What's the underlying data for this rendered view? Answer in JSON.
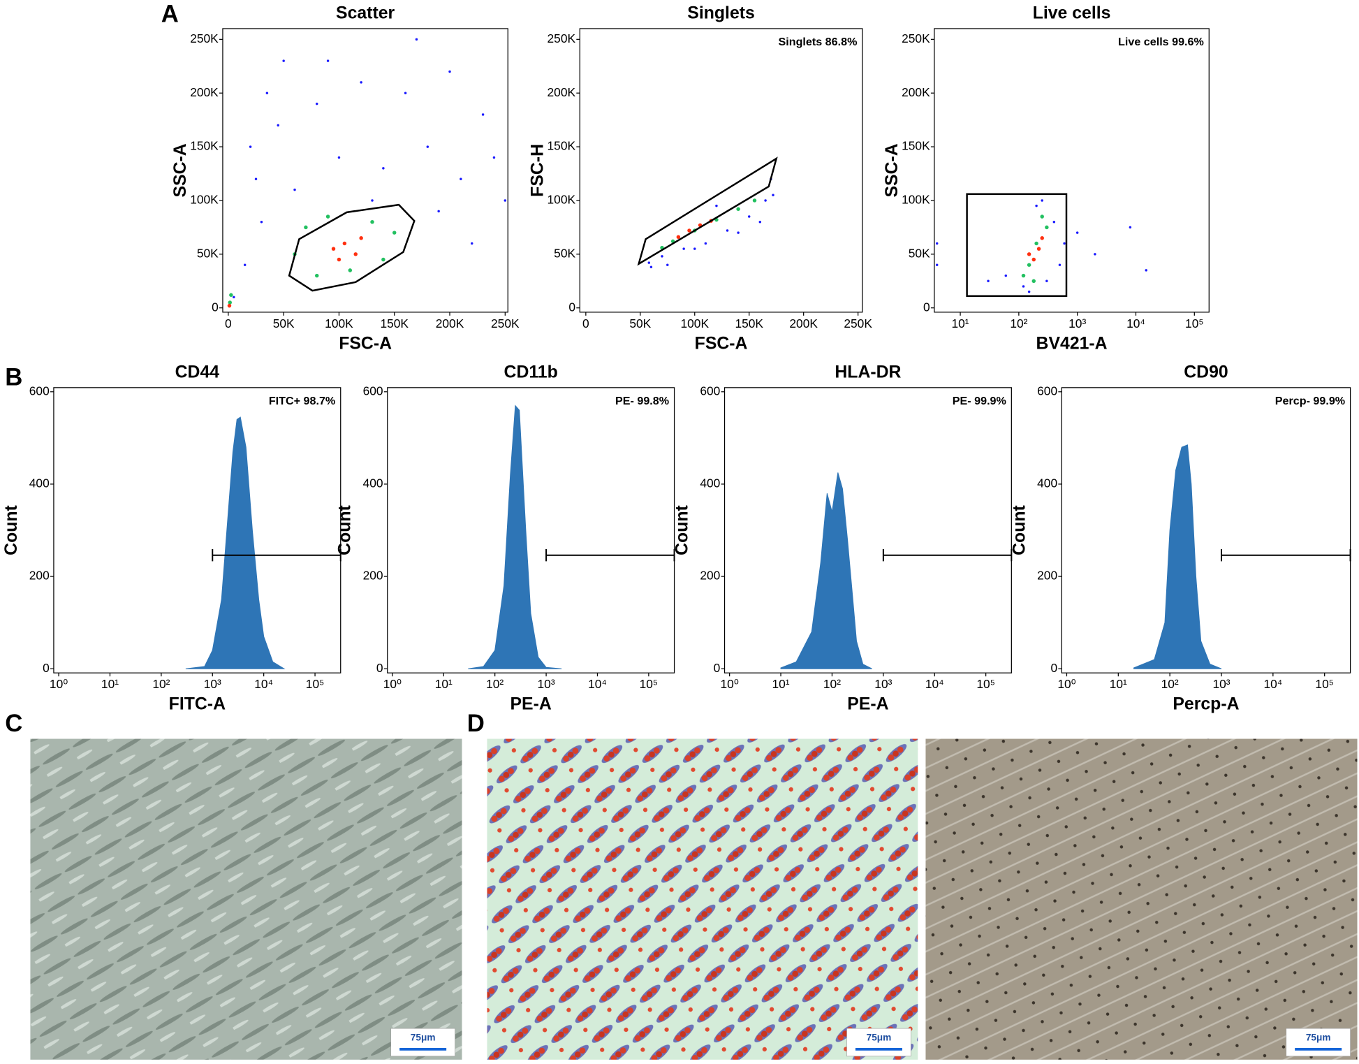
{
  "panel_labels": [
    "A",
    "B",
    "C",
    "D"
  ],
  "chart_data": [
    {
      "type": "scatter",
      "title": "Scatter",
      "xlabel": "FSC-A",
      "ylabel": "SSC-A",
      "xlim": [
        -5000,
        252500
      ],
      "ylim": [
        -4000,
        260000
      ],
      "xticks": [
        0,
        {
          "value": 50000,
          "label": "50K"
        },
        {
          "value": 100000,
          "label": "100K"
        },
        {
          "value": 150000,
          "label": "150K"
        },
        {
          "value": 200000,
          "label": "200K"
        },
        {
          "value": 250000,
          "label": "250K"
        }
      ],
      "yticks": [
        0,
        {
          "value": 50000,
          "label": "50K"
        },
        {
          "value": 100000,
          "label": "100K"
        },
        {
          "value": 150000,
          "label": "150K"
        },
        {
          "value": 200000,
          "label": "200K"
        },
        {
          "value": 250000,
          "label": "250K"
        }
      ],
      "series": [
        {
          "color": "#1a1aff",
          "x": [
            20000,
            35000,
            50000,
            80000,
            120000,
            160000,
            200000,
            230000,
            240000,
            210000,
            180000,
            140000,
            100000,
            60000,
            30000,
            15000,
            5000,
            190000,
            220000,
            250000,
            45000,
            90000,
            170000,
            130000,
            25000
          ],
          "values": [
            150000,
            200000,
            230000,
            190000,
            210000,
            200000,
            220000,
            180000,
            140000,
            120000,
            150000,
            130000,
            140000,
            110000,
            80000,
            40000,
            10000,
            90000,
            60000,
            100000,
            170000,
            230000,
            250000,
            100000,
            120000
          ]
        },
        {
          "color": "#22c060",
          "x": [
            70000,
            90000,
            130000,
            150000,
            60000,
            140000,
            80000,
            110000,
            1500,
            2500
          ],
          "values": [
            75000,
            85000,
            80000,
            70000,
            50000,
            45000,
            30000,
            35000,
            5000,
            12000
          ]
        },
        {
          "color": "#ff3010",
          "x": [
            95000,
            105000,
            115000,
            100000,
            120000,
            1000
          ],
          "values": [
            55000,
            60000,
            50000,
            45000,
            65000,
            2000
          ]
        }
      ],
      "gate": {
        "x": [
          55000,
          64000,
          107000,
          154000,
          168000,
          158000,
          115000,
          76000
        ],
        "y": [
          30000,
          64000,
          89000,
          96000,
          81000,
          52000,
          24000,
          16000
        ]
      }
    },
    {
      "type": "scatter",
      "title": "Singlets",
      "xlabel": "FSC-A",
      "ylabel": "FSC-H",
      "annotation": "Singlets 86.8%",
      "xlim": [
        -5500,
        254000
      ],
      "ylim": [
        -4000,
        260000
      ],
      "xticks": [
        0,
        {
          "value": 50000,
          "label": "50K"
        },
        {
          "value": 100000,
          "label": "100K"
        },
        {
          "value": 150000,
          "label": "150K"
        },
        {
          "value": 200000,
          "label": "200K"
        },
        {
          "value": 250000,
          "label": "250K"
        }
      ],
      "yticks": [
        0,
        {
          "value": 50000,
          "label": "50K"
        },
        {
          "value": 100000,
          "label": "100K"
        },
        {
          "value": 150000,
          "label": "150K"
        },
        {
          "value": 200000,
          "label": "200K"
        },
        {
          "value": 250000,
          "label": "250K"
        }
      ],
      "series": [
        {
          "color": "#1a1aff",
          "x": [
            58000,
            70000,
            90000,
            110000,
            130000,
            150000,
            165000,
            170000,
            160000,
            140000,
            75000,
            120000,
            100000,
            60000,
            172000
          ],
          "values": [
            42000,
            48000,
            55000,
            60000,
            72000,
            85000,
            100000,
            120000,
            80000,
            70000,
            40000,
            95000,
            55000,
            38000,
            105000
          ]
        },
        {
          "color": "#22c060",
          "x": [
            80000,
            100000,
            120000,
            140000,
            155000,
            70000
          ],
          "values": [
            62000,
            72000,
            82000,
            92000,
            100000,
            56000
          ]
        },
        {
          "color": "#ff3010",
          "x": [
            85000,
            95000,
            105000,
            115000
          ],
          "values": [
            66000,
            72000,
            77000,
            81000
          ]
        }
      ],
      "gate": {
        "x": [
          48600,
          55000,
          175000,
          168000
        ],
        "y": [
          41000,
          64000,
          139000,
          113000
        ]
      }
    },
    {
      "type": "scatter",
      "title": "Live cells",
      "xlabel": "BV421-A",
      "ylabel": "SSC-A",
      "annotation": "Live cells 99.6%",
      "xlog": true,
      "xlim": [
        3.6,
        178000
      ],
      "ylim": [
        -4000,
        260000
      ],
      "xticks": [
        {
          "value": 10,
          "label": "10¹"
        },
        {
          "value": 100,
          "label": "10²"
        },
        {
          "value": 1000,
          "label": "10³"
        },
        {
          "value": 10000,
          "label": "10⁴"
        },
        {
          "value": 100000,
          "label": "10⁵"
        }
      ],
      "yticks": [
        0,
        {
          "value": 50000,
          "label": "50K"
        },
        {
          "value": 100000,
          "label": "100K"
        },
        {
          "value": 150000,
          "label": "150K"
        },
        {
          "value": 200000,
          "label": "200K"
        },
        {
          "value": 250000,
          "label": "250K"
        }
      ],
      "series": [
        {
          "color": "#1a1aff",
          "x": [
            120,
            60,
            150,
            300,
            500,
            400,
            250,
            600,
            1000,
            2000,
            8000,
            15000,
            30,
            4,
            4,
            200
          ],
          "values": [
            20000,
            30000,
            15000,
            25000,
            40000,
            80000,
            100000,
            60000,
            70000,
            50000,
            75000,
            35000,
            25000,
            60000,
            40000,
            95000
          ]
        },
        {
          "color": "#22c060",
          "x": [
            150,
            200,
            300,
            250,
            120,
            180
          ],
          "values": [
            40000,
            60000,
            75000,
            85000,
            30000,
            25000
          ]
        },
        {
          "color": "#ff3010",
          "x": [
            180,
            220,
            150,
            250
          ],
          "values": [
            45000,
            55000,
            50000,
            65000
          ]
        }
      ],
      "gate": {
        "x": [
          13,
          650,
          650,
          13
        ],
        "y": [
          11000,
          11000,
          106000,
          106000
        ]
      }
    },
    {
      "type": "area",
      "title": "CD44",
      "xlabel": "FITC-A",
      "ylabel": "Count",
      "annotation": "FITC+ 98.7%",
      "xlog": true,
      "color": "#2e75b6",
      "xlim": [
        0.8,
        316000
      ],
      "ylim": [
        -9,
        609
      ],
      "xticks": [
        {
          "value": 1,
          "label": "10⁰"
        },
        {
          "value": 10,
          "label": "10¹"
        },
        {
          "value": 100,
          "label": "10²"
        },
        {
          "value": 1000,
          "label": "10³"
        },
        {
          "value": 10000,
          "label": "10⁴"
        },
        {
          "value": 100000,
          "label": "10⁵"
        }
      ],
      "yticks": [
        0,
        200,
        400,
        600
      ],
      "x": [
        300,
        700,
        1000,
        1500,
        2000,
        2500,
        3000,
        3500,
        4500,
        6000,
        8000,
        10000,
        15000,
        25000
      ],
      "values": [
        0,
        5,
        40,
        150,
        330,
        470,
        540,
        545,
        480,
        300,
        150,
        70,
        15,
        0
      ],
      "gate": {
        "x": [
          1000,
          316000
        ],
        "y": 246
      }
    },
    {
      "type": "area",
      "title": "CD11b",
      "xlabel": "PE-A",
      "ylabel": "Count",
      "annotation": "PE- 99.8%",
      "xlog": true,
      "color": "#2e75b6",
      "xlim": [
        0.8,
        316000
      ],
      "ylim": [
        -9,
        609
      ],
      "xticks": [
        {
          "value": 1,
          "label": "10⁰"
        },
        {
          "value": 10,
          "label": "10¹"
        },
        {
          "value": 100,
          "label": "10²"
        },
        {
          "value": 1000,
          "label": "10³"
        },
        {
          "value": 10000,
          "label": "10⁴"
        },
        {
          "value": 100000,
          "label": "10⁵"
        }
      ],
      "yticks": [
        0,
        200,
        400,
        600
      ],
      "x": [
        30,
        60,
        100,
        150,
        200,
        250,
        300,
        400,
        500,
        700,
        1000,
        2000
      ],
      "values": [
        0,
        5,
        40,
        180,
        420,
        570,
        560,
        300,
        120,
        25,
        3,
        0
      ],
      "gate": {
        "x": [
          1000,
          316000
        ],
        "y": 246
      }
    },
    {
      "type": "area",
      "title": "HLA-DR",
      "xlabel": "PE-A",
      "ylabel": "Count",
      "annotation": "PE- 99.9%",
      "xlog": true,
      "color": "#2e75b6",
      "xlim": [
        0.8,
        316000
      ],
      "ylim": [
        -9,
        609
      ],
      "xticks": [
        {
          "value": 1,
          "label": "10⁰"
        },
        {
          "value": 10,
          "label": "10¹"
        },
        {
          "value": 100,
          "label": "10²"
        },
        {
          "value": 1000,
          "label": "10³"
        },
        {
          "value": 10000,
          "label": "10⁴"
        },
        {
          "value": 100000,
          "label": "10⁵"
        }
      ],
      "yticks": [
        0,
        200,
        400,
        600
      ],
      "x": [
        10,
        20,
        40,
        60,
        80,
        100,
        130,
        160,
        200,
        250,
        300,
        400,
        600
      ],
      "values": [
        2,
        15,
        80,
        230,
        380,
        340,
        425,
        390,
        280,
        160,
        60,
        10,
        0
      ],
      "gate": {
        "x": [
          1000,
          316000
        ],
        "y": 246
      }
    },
    {
      "type": "area",
      "title": "CD90",
      "xlabel": "Percp-A",
      "ylabel": "Count",
      "annotation": "Percp- 99.9%",
      "xlog": true,
      "color": "#2e75b6",
      "xlim": [
        0.8,
        316000
      ],
      "ylim": [
        -9,
        609
      ],
      "xticks": [
        {
          "value": 1,
          "label": "10⁰"
        },
        {
          "value": 10,
          "label": "10¹"
        },
        {
          "value": 100,
          "label": "10²"
        },
        {
          "value": 1000,
          "label": "10³"
        },
        {
          "value": 10000,
          "label": "10⁴"
        },
        {
          "value": 100000,
          "label": "10⁵"
        }
      ],
      "yticks": [
        0,
        200,
        400,
        600
      ],
      "x": [
        20,
        50,
        80,
        100,
        130,
        170,
        220,
        260,
        320,
        400,
        600,
        1000
      ],
      "values": [
        2,
        20,
        100,
        300,
        430,
        480,
        485,
        400,
        200,
        60,
        10,
        0
      ],
      "gate": {
        "x": [
          1000,
          316000
        ],
        "y": 246
      }
    }
  ],
  "micrographs": [
    {
      "scale_bar": "75μm"
    },
    {
      "scale_bar": "75μm"
    },
    {
      "scale_bar": "75μm"
    }
  ]
}
